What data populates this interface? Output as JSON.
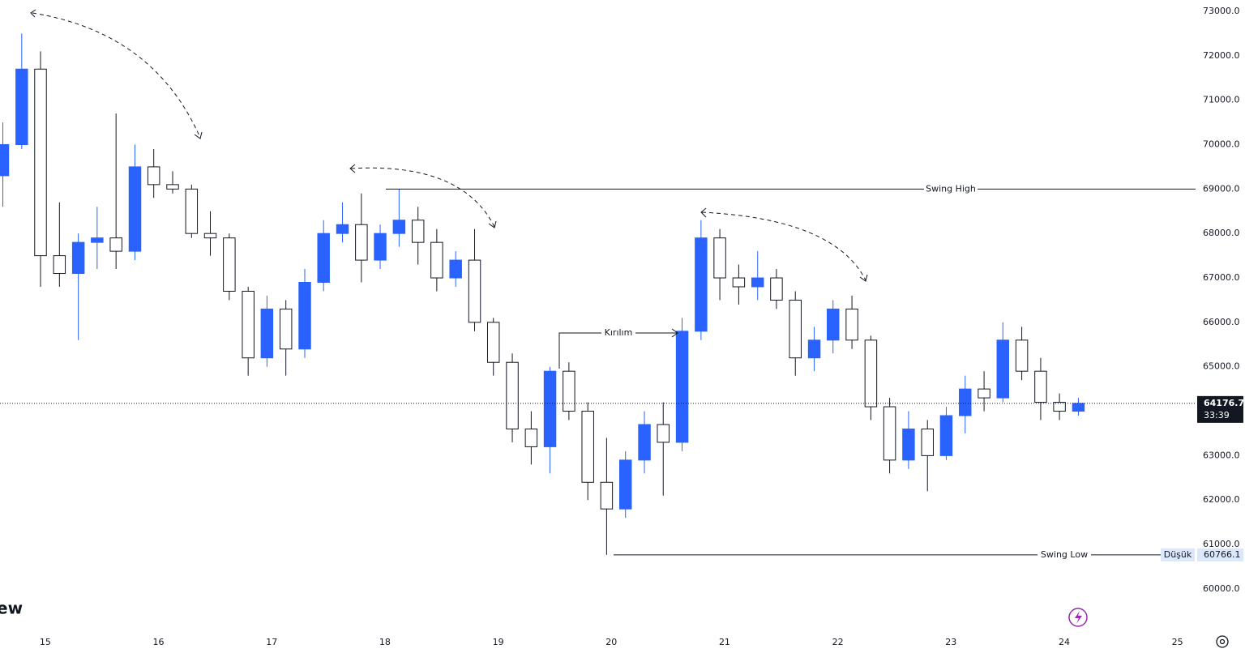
{
  "chart_data": {
    "type": "candlestick",
    "x": [
      14.625,
      14.792,
      14.958,
      15.125,
      15.292,
      15.458,
      15.625,
      15.792,
      15.958,
      16.125,
      16.292,
      16.458,
      16.625,
      16.792,
      16.958,
      17.125,
      17.292,
      17.458,
      17.625,
      17.792,
      17.958,
      18.125,
      18.292,
      18.458,
      18.625,
      18.792,
      18.958,
      19.125,
      19.292,
      19.458,
      19.625,
      19.792,
      19.958,
      20.125,
      20.292,
      20.458,
      20.625,
      20.792,
      20.958,
      21.125,
      21.292,
      21.458,
      21.625,
      21.792,
      21.958,
      22.125,
      22.292,
      22.458,
      22.625,
      22.792,
      22.958,
      23.125,
      23.292,
      23.458,
      23.625,
      23.792,
      23.958,
      24.125
    ],
    "open": [
      69300,
      70000,
      71700,
      67500,
      67100,
      67800,
      67900,
      67600,
      69500,
      69100,
      69000,
      68000,
      67900,
      66700,
      65200,
      66300,
      65400,
      66900,
      68000,
      68200,
      67400,
      68000,
      68300,
      67800,
      67000,
      67400,
      66000,
      65100,
      63600,
      63200,
      64900,
      64000,
      62400,
      61800,
      62900,
      63700,
      63300,
      65800,
      67900,
      67000,
      66800,
      67000,
      66500,
      65200,
      65600,
      66300,
      65600,
      64100,
      62900,
      63600,
      63000,
      63900,
      64500,
      64300,
      65600,
      64900,
      64200,
      64000
    ],
    "high": [
      70500,
      72500,
      72100,
      68700,
      68000,
      68600,
      70700,
      70000,
      69900,
      69400,
      69100,
      68500,
      68000,
      66800,
      66600,
      66500,
      67200,
      68300,
      68700,
      68900,
      68200,
      69000,
      68600,
      68100,
      67600,
      68100,
      66100,
      65300,
      64000,
      65000,
      65100,
      64200,
      63400,
      63100,
      64000,
      64200,
      66100,
      68300,
      68100,
      67300,
      67600,
      67200,
      66700,
      65900,
      66500,
      66600,
      65700,
      64300,
      64000,
      63800,
      64100,
      64800,
      64900,
      66000,
      65900,
      65200,
      64400,
      64300
    ],
    "low": [
      68600,
      69900,
      66800,
      66800,
      65600,
      67200,
      67200,
      67400,
      68800,
      68900,
      67900,
      67500,
      66500,
      64800,
      65000,
      64800,
      65200,
      66700,
      67800,
      66900,
      67200,
      67700,
      67300,
      66700,
      66800,
      65800,
      64800,
      63300,
      62800,
      62600,
      63800,
      62000,
      60766.1,
      61600,
      62600,
      62100,
      63100,
      65600,
      66500,
      66400,
      66500,
      66300,
      64800,
      64900,
      65300,
      65400,
      63800,
      62600,
      62700,
      62200,
      62900,
      63500,
      64000,
      64200,
      64700,
      63800,
      63800,
      63900
    ],
    "close": [
      70000,
      71700,
      67500,
      67100,
      67800,
      67900,
      67600,
      69500,
      69100,
      69000,
      68000,
      67900,
      66700,
      65200,
      66300,
      65400,
      66900,
      68000,
      68200,
      67400,
      68000,
      68300,
      67800,
      67000,
      67400,
      66000,
      65100,
      63600,
      63200,
      64900,
      64000,
      62400,
      61800,
      62900,
      63700,
      63300,
      65800,
      67900,
      67000,
      66800,
      67000,
      66500,
      65200,
      65600,
      66300,
      65600,
      64100,
      62900,
      63600,
      63000,
      63900,
      64500,
      64300,
      65600,
      64900,
      64200,
      64000,
      64176.7
    ],
    "up_color": "#2962ff",
    "down_color": "#ffffff",
    "xlim": [
      14.6,
      25.16
    ],
    "xticks": [
      15,
      16,
      17,
      18,
      19,
      20,
      21,
      22,
      23,
      24,
      25
    ],
    "ylim": [
      59670,
      73255
    ],
    "yticks": [
      {
        "value": 60000,
        "label": "60000.0"
      },
      {
        "value": 61000,
        "label": "61000.0"
      },
      {
        "value": 62000,
        "label": "62000.0"
      },
      {
        "value": 63000,
        "label": "63000.0"
      },
      {
        "value": 64000,
        "label": "64000.0"
      },
      {
        "value": 65000,
        "label": "65000.0"
      },
      {
        "value": 66000,
        "label": "66000.0"
      },
      {
        "value": 67000,
        "label": "67000.0"
      },
      {
        "value": 68000,
        "label": "68000.0"
      },
      {
        "value": 69000,
        "label": "69000.0"
      },
      {
        "value": 70000,
        "label": "70000.0"
      },
      {
        "value": 71000,
        "label": "71000.0"
      },
      {
        "value": 72000,
        "label": "72000.0"
      },
      {
        "value": 73000,
        "label": "73000.0"
      }
    ],
    "levels": [
      {
        "label": "Swing High",
        "value": 69000
      },
      {
        "label": "Swing Low",
        "value": 60766.1
      }
    ],
    "annotation": "Kırılım",
    "last_price": 64176.7,
    "countdown": "33:39",
    "low_tag": "Düşük",
    "low_value": 60766.1,
    "logo": "ew"
  }
}
